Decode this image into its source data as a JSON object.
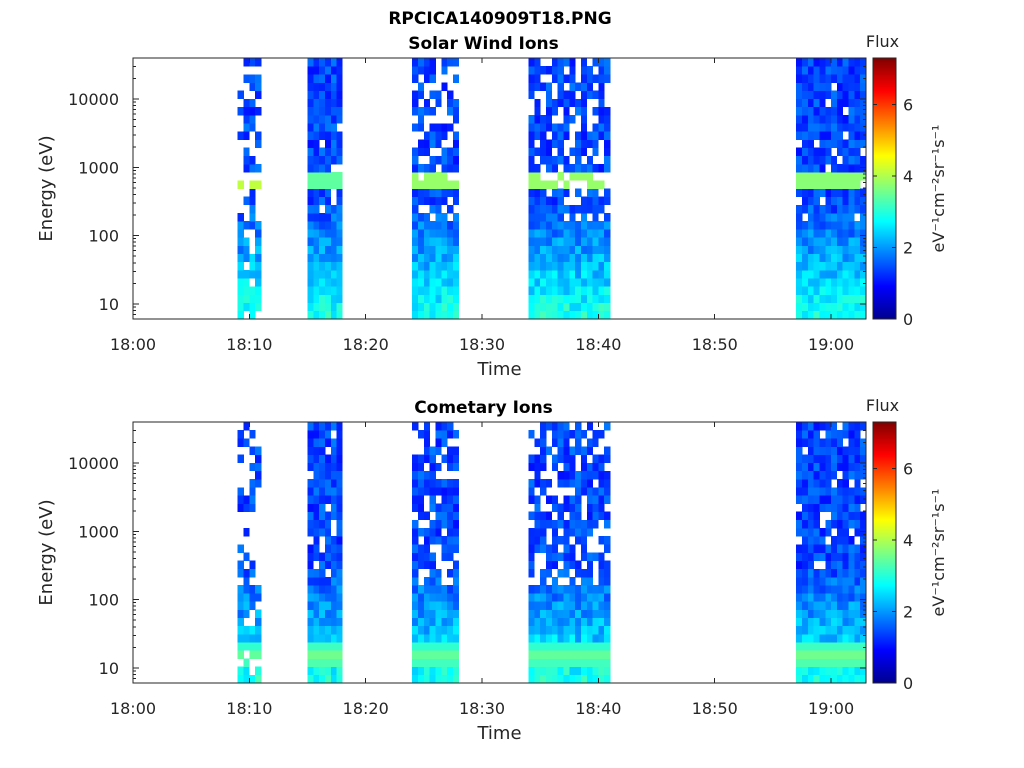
{
  "figure_title": "RPCICA140909T18.PNG",
  "colors": {
    "colormap": "jet",
    "colormap_stops": [
      "#00008f",
      "#0000ff",
      "#00ffff",
      "#ffff00",
      "#ff0000",
      "#800000"
    ]
  },
  "chart_data": [
    {
      "type": "heatmap",
      "title": "Solar Wind Ions",
      "xlabel": "Time",
      "ylabel": "Energy (eV)",
      "xticks": [
        "18:00",
        "18:10",
        "18:20",
        "18:30",
        "18:40",
        "18:50",
        "19:00"
      ],
      "xlim_minutes": [
        0,
        63
      ],
      "yscale": "log",
      "ylim": [
        6,
        40000
      ],
      "yticks": [
        {
          "value": 10,
          "label": "10"
        },
        {
          "value": 100,
          "label": "100"
        },
        {
          "value": 1000,
          "label": "1000"
        },
        {
          "value": 10000,
          "label": "10000"
        }
      ],
      "colorbar": {
        "title": "Flux",
        "label": "eV⁻¹cm⁻²sr⁻¹s⁻¹",
        "range": [
          0,
          7.3
        ],
        "ticks": [
          0,
          2,
          4,
          6
        ],
        "tick_labels": [
          "0",
          "2",
          "4",
          "6"
        ]
      },
      "bursts": [
        {
          "start": "18:09",
          "end": "18:11",
          "density": "sparse",
          "peak_flux": 4.3,
          "peak_energy_eV": 650
        },
        {
          "start": "18:15",
          "end": "18:18",
          "density": "dense",
          "peak_flux": 3.6,
          "peak_energy_eV": 650
        },
        {
          "start": "18:24",
          "end": "18:28",
          "density": "medium",
          "peak_flux": 4.0,
          "peak_energy_eV": 650
        },
        {
          "start": "18:34",
          "end": "18:41",
          "density": "medium",
          "peak_flux": 4.0,
          "peak_energy_eV": 650
        },
        {
          "start": "18:57",
          "end": "19:03",
          "density": "dense",
          "peak_flux": 3.9,
          "peak_energy_eV": 650
        }
      ]
    },
    {
      "type": "heatmap",
      "title": "Cometary Ions",
      "xlabel": "Time",
      "ylabel": "Energy (eV)",
      "xticks": [
        "18:00",
        "18:10",
        "18:20",
        "18:30",
        "18:40",
        "18:50",
        "19:00"
      ],
      "xlim_minutes": [
        0,
        63
      ],
      "yscale": "log",
      "ylim": [
        6,
        40000
      ],
      "yticks": [
        {
          "value": 10,
          "label": "10"
        },
        {
          "value": 100,
          "label": "100"
        },
        {
          "value": 1000,
          "label": "1000"
        },
        {
          "value": 10000,
          "label": "10000"
        }
      ],
      "colorbar": {
        "title": "Flux",
        "label": "eV⁻¹cm⁻²sr⁻¹s⁻¹",
        "range": [
          0,
          7.3
        ],
        "ticks": [
          0,
          2,
          4,
          6
        ],
        "tick_labels": [
          "0",
          "2",
          "4",
          "6"
        ]
      },
      "bursts": [
        {
          "start": "18:09",
          "end": "18:11",
          "density": "sparse",
          "peak_flux": 3.5,
          "peak_energy_eV": 15
        },
        {
          "start": "18:15",
          "end": "18:18",
          "density": "dense",
          "peak_flux": 3.6,
          "peak_energy_eV": 15
        },
        {
          "start": "18:24",
          "end": "18:28",
          "density": "medium",
          "peak_flux": 3.5,
          "peak_energy_eV": 15
        },
        {
          "start": "18:34",
          "end": "18:41",
          "density": "medium",
          "peak_flux": 3.5,
          "peak_energy_eV": 15
        },
        {
          "start": "18:57",
          "end": "19:03",
          "density": "dense",
          "peak_flux": 3.6,
          "peak_energy_eV": 15
        }
      ]
    }
  ]
}
